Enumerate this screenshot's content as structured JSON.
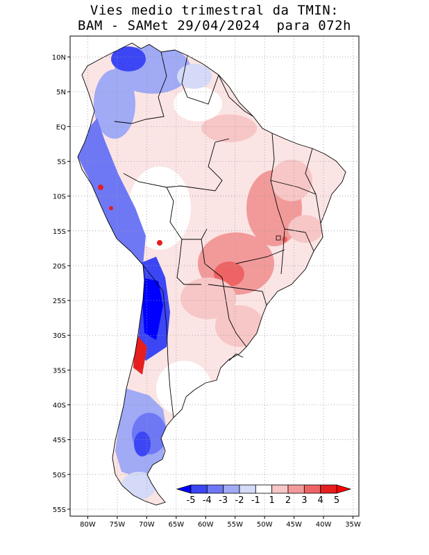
{
  "title": {
    "line1": "Vies medio trimestral da TMIN:",
    "line2": "BAM - SAMet 29/04/2024  para 072h"
  },
  "map": {
    "lat_labels": [
      "10N",
      "5N",
      "EQ",
      "5S",
      "10S",
      "15S",
      "20S",
      "25S",
      "30S",
      "35S",
      "40S",
      "45S",
      "50S",
      "55S"
    ],
    "lon_labels": [
      "80W",
      "75W",
      "70W",
      "65W",
      "60W",
      "55W",
      "50W",
      "45W",
      "40W",
      "35W"
    ],
    "lon_range": [
      -83,
      -34
    ],
    "lat_range": [
      13,
      -56
    ]
  },
  "colorbar": {
    "labels": [
      "-5",
      "-4",
      "-3",
      "-2",
      "-1",
      "1",
      "2",
      "3",
      "4",
      "5"
    ],
    "colors": [
      "#0000ff",
      "#3c46f5",
      "#6e78f5",
      "#a0aaf5",
      "#d4daf7",
      "#ffffff",
      "#f7c6c6",
      "#f29a9a",
      "#ee6464",
      "#e61e1e",
      "#ff0000"
    ]
  }
}
